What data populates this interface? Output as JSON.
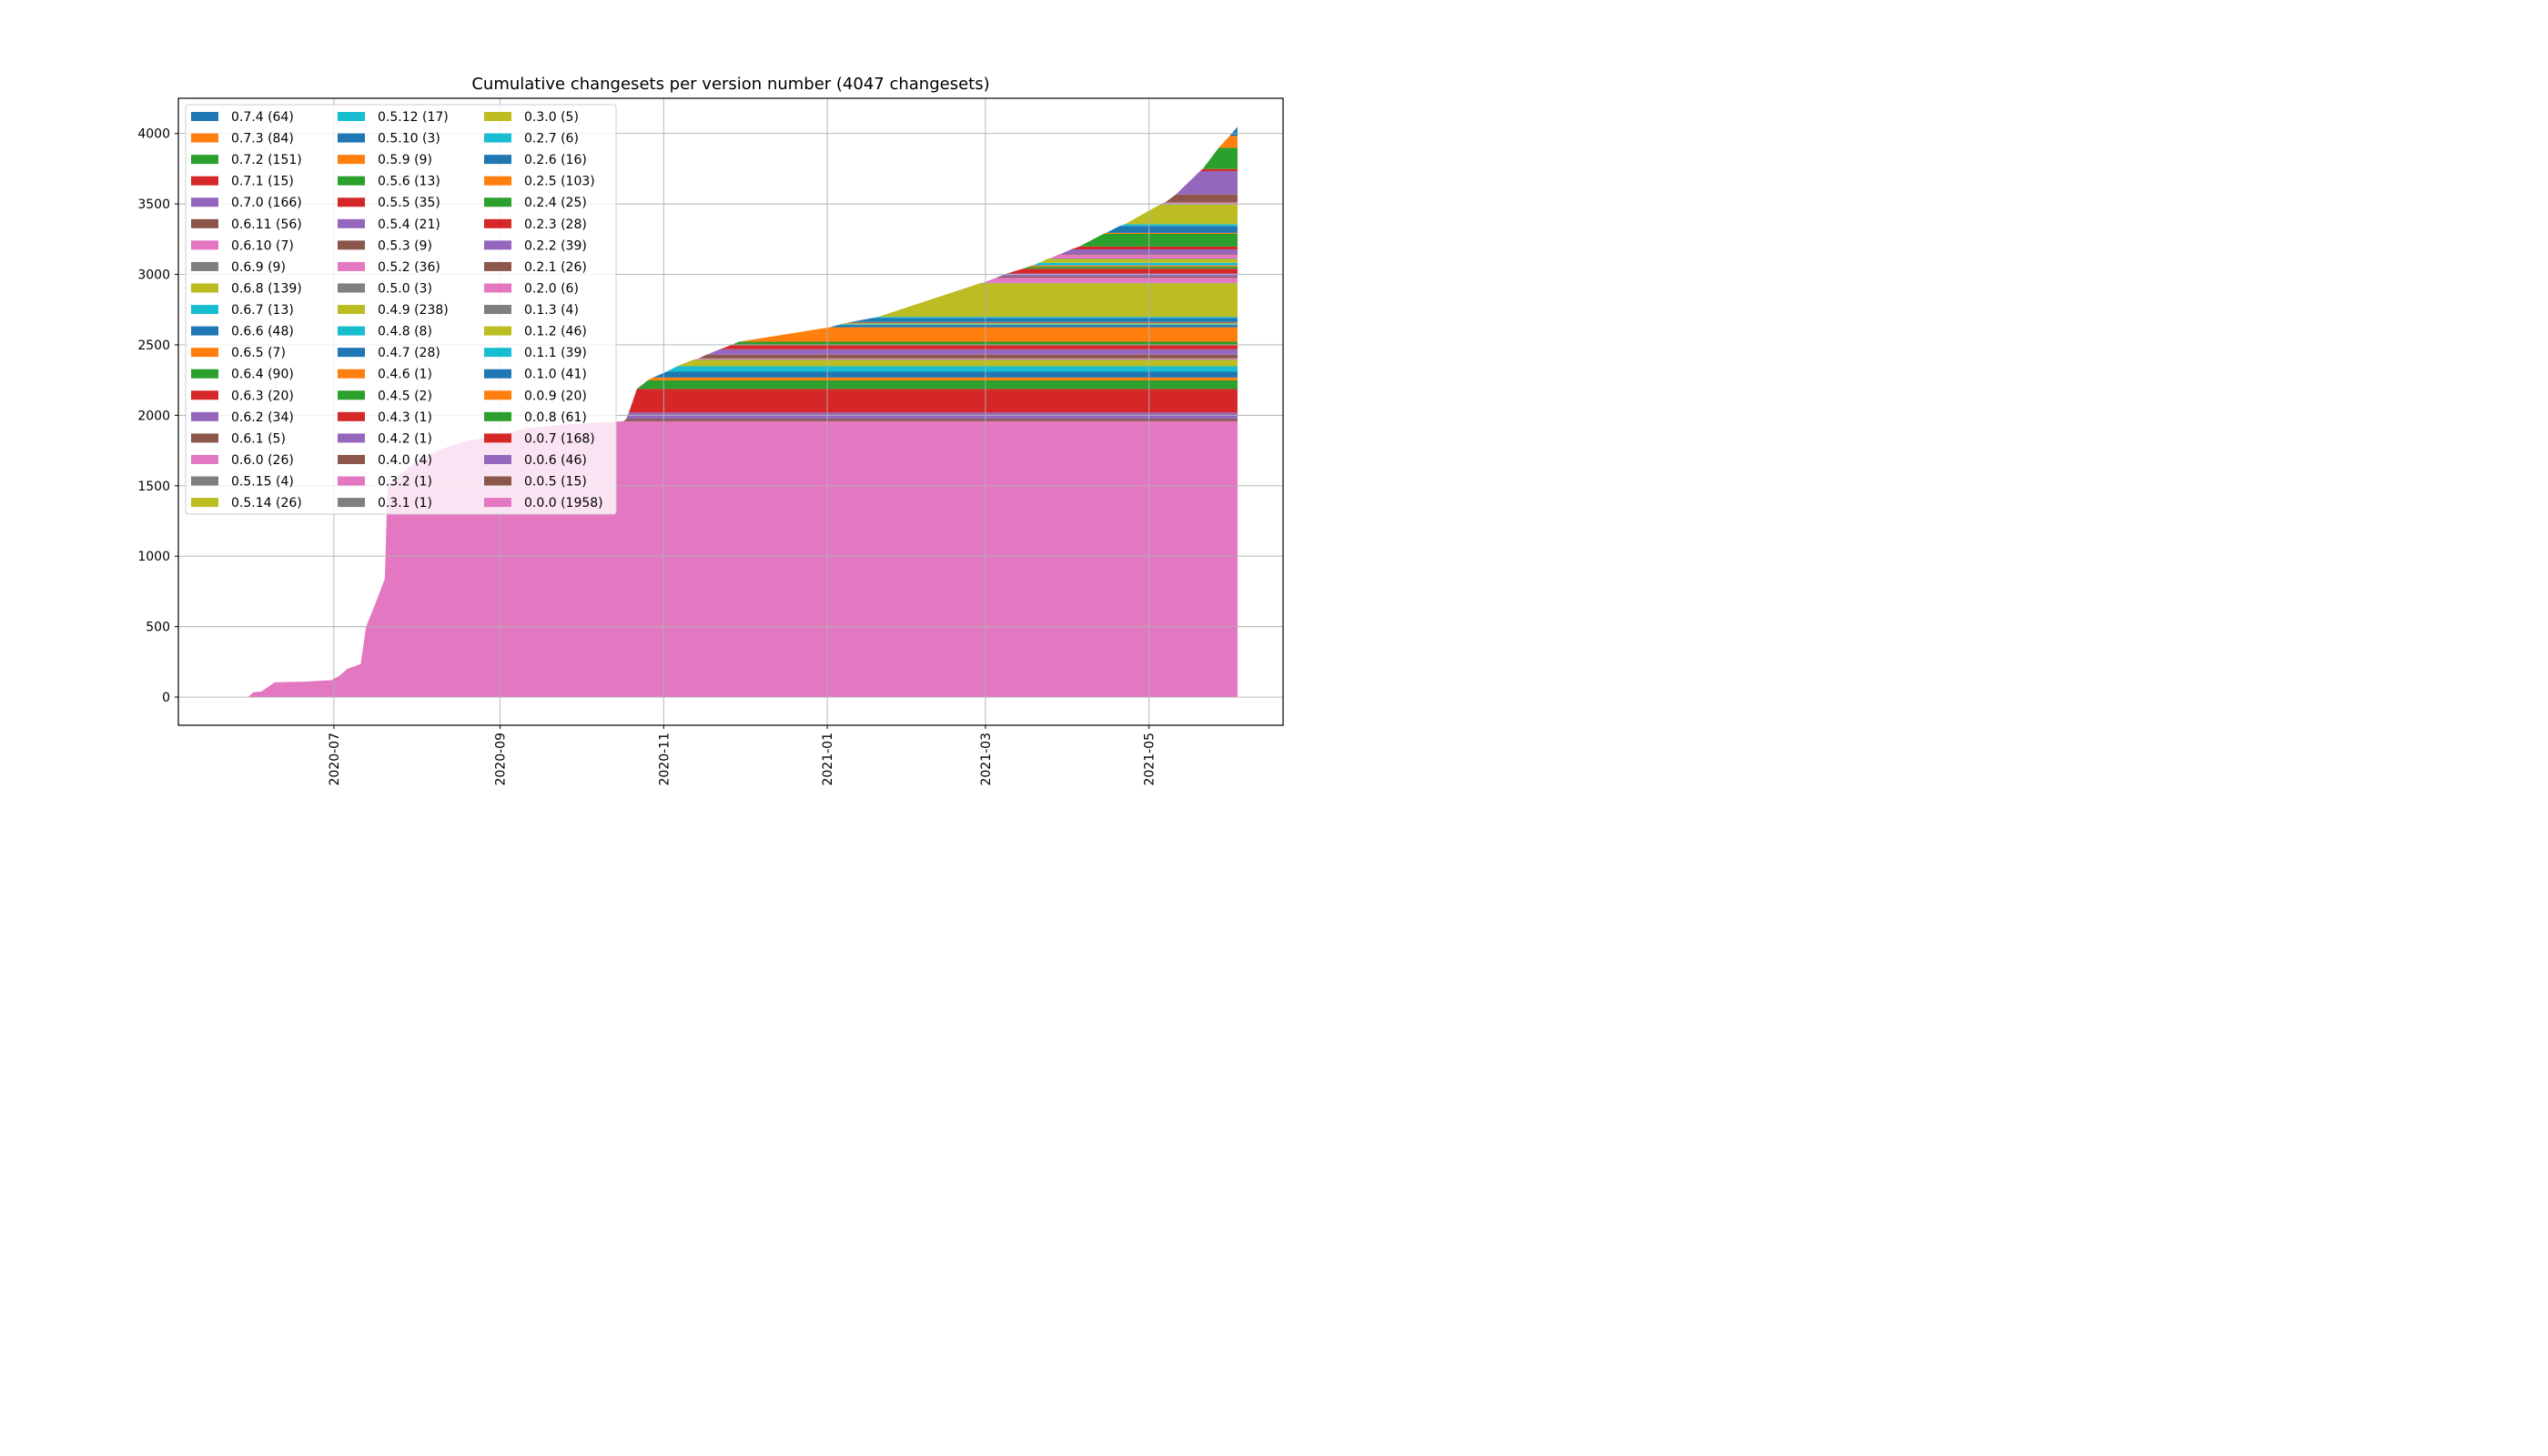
{
  "chart_data": {
    "type": "area",
    "stacked": true,
    "title": "Cumulative changesets per version number (4047 changesets)",
    "xlabel": "",
    "ylabel": "",
    "xlim": [
      "2020-05-04",
      "2021-06-20"
    ],
    "ylim": [
      -200,
      4250
    ],
    "grid": true,
    "legend_position": "top-left",
    "x_ticks": [
      "2020-07",
      "2020-09",
      "2020-11",
      "2021-01",
      "2021-03",
      "2021-05"
    ],
    "y_ticks": [
      0,
      500,
      1000,
      1500,
      2000,
      2500,
      3000,
      3500,
      4000
    ],
    "end_date": "2021-06-03",
    "series": [
      {
        "name": "0.0.0 (1958)",
        "color": "#e377c2",
        "start": "2020-05-30",
        "total": 1958
      },
      {
        "name": "0.0.5 (15)",
        "color": "#8c564b",
        "start": "2020-10-17",
        "total": 15
      },
      {
        "name": "0.0.6 (46)",
        "color": "#9467bd",
        "start": "2020-10-18",
        "total": 46
      },
      {
        "name": "0.0.7 (168)",
        "color": "#d62728",
        "start": "2020-10-19",
        "total": 168
      },
      {
        "name": "0.0.8 (61)",
        "color": "#2ca02c",
        "start": "2020-10-22",
        "total": 61
      },
      {
        "name": "0.0.9 (20)",
        "color": "#ff7f0e",
        "start": "2020-10-26",
        "total": 20
      },
      {
        "name": "0.1.0 (41)",
        "color": "#1f77b4",
        "start": "2020-10-28",
        "total": 41
      },
      {
        "name": "0.1.1 (39)",
        "color": "#17becf",
        "start": "2020-11-02",
        "total": 39
      },
      {
        "name": "0.1.2 (46)",
        "color": "#bcbd22",
        "start": "2020-11-06",
        "total": 46
      },
      {
        "name": "0.1.3 (4)",
        "color": "#7f7f7f",
        "start": "2020-11-12",
        "total": 4
      },
      {
        "name": "0.2.0 (6)",
        "color": "#e377c2",
        "start": "2020-11-13",
        "total": 6
      },
      {
        "name": "0.2.1 (26)",
        "color": "#8c564b",
        "start": "2020-11-14",
        "total": 26
      },
      {
        "name": "0.2.2 (39)",
        "color": "#9467bd",
        "start": "2020-11-17",
        "total": 39
      },
      {
        "name": "0.2.3 (28)",
        "color": "#d62728",
        "start": "2020-11-22",
        "total": 28
      },
      {
        "name": "0.2.4 (25)",
        "color": "#2ca02c",
        "start": "2020-11-26",
        "total": 25
      },
      {
        "name": "0.2.5 (103)",
        "color": "#ff7f0e",
        "start": "2020-11-29",
        "total": 103
      },
      {
        "name": "0.2.6 (16)",
        "color": "#1f77b4",
        "start": "2021-01-02",
        "total": 16
      },
      {
        "name": "0.2.7 (6)",
        "color": "#17becf",
        "start": "2021-01-05",
        "total": 6
      },
      {
        "name": "0.3.0 (5)",
        "color": "#bcbd22",
        "start": "2021-01-06",
        "total": 5
      },
      {
        "name": "0.3.1 (1)",
        "color": "#7f7f7f",
        "start": "2021-01-07",
        "total": 1
      },
      {
        "name": "0.3.2 (1)",
        "color": "#e377c2",
        "start": "2021-01-07",
        "total": 1
      },
      {
        "name": "0.4.0 (4)",
        "color": "#8c564b",
        "start": "2021-01-08",
        "total": 4
      },
      {
        "name": "0.4.2 (1)",
        "color": "#9467bd",
        "start": "2021-01-08",
        "total": 1
      },
      {
        "name": "0.4.3 (1)",
        "color": "#d62728",
        "start": "2021-01-09",
        "total": 1
      },
      {
        "name": "0.4.5 (2)",
        "color": "#2ca02c",
        "start": "2021-01-09",
        "total": 2
      },
      {
        "name": "0.4.6 (1)",
        "color": "#ff7f0e",
        "start": "2021-01-09",
        "total": 1
      },
      {
        "name": "0.4.7 (28)",
        "color": "#1f77b4",
        "start": "2021-01-10",
        "total": 28
      },
      {
        "name": "0.4.8 (8)",
        "color": "#17becf",
        "start": "2021-01-18",
        "total": 8
      },
      {
        "name": "0.4.9 (238)",
        "color": "#bcbd22",
        "start": "2021-01-20",
        "total": 238
      },
      {
        "name": "0.5.0 (3)",
        "color": "#7f7f7f",
        "start": "2021-02-27",
        "total": 3
      },
      {
        "name": "0.5.2 (36)",
        "color": "#e377c2",
        "start": "2021-02-28",
        "total": 36
      },
      {
        "name": "0.5.3 (9)",
        "color": "#8c564b",
        "start": "2021-03-05",
        "total": 9
      },
      {
        "name": "0.5.4 (21)",
        "color": "#9467bd",
        "start": "2021-03-06",
        "total": 21
      },
      {
        "name": "0.5.5 (35)",
        "color": "#d62728",
        "start": "2021-03-09",
        "total": 35
      },
      {
        "name": "0.5.6 (13)",
        "color": "#2ca02c",
        "start": "2021-03-15",
        "total": 13
      },
      {
        "name": "0.5.9 (9)",
        "color": "#ff7f0e",
        "start": "2021-03-17",
        "total": 9
      },
      {
        "name": "0.5.10 (3)",
        "color": "#1f77b4",
        "start": "2021-03-18",
        "total": 3
      },
      {
        "name": "0.5.12 (17)",
        "color": "#17becf",
        "start": "2021-03-19",
        "total": 17
      },
      {
        "name": "0.5.14 (26)",
        "color": "#bcbd22",
        "start": "2021-03-21",
        "total": 26
      },
      {
        "name": "0.5.15 (4)",
        "color": "#7f7f7f",
        "start": "2021-03-24",
        "total": 4
      },
      {
        "name": "0.6.0 (26)",
        "color": "#e377c2",
        "start": "2021-03-25",
        "total": 26
      },
      {
        "name": "0.6.1 (5)",
        "color": "#8c564b",
        "start": "2021-03-28",
        "total": 5
      },
      {
        "name": "0.6.2 (34)",
        "color": "#9467bd",
        "start": "2021-03-29",
        "total": 34
      },
      {
        "name": "0.6.3 (20)",
        "color": "#d62728",
        "start": "2021-04-02",
        "total": 20
      },
      {
        "name": "0.6.4 (90)",
        "color": "#2ca02c",
        "start": "2021-04-05",
        "total": 90
      },
      {
        "name": "0.6.5 (7)",
        "color": "#ff7f0e",
        "start": "2021-04-14",
        "total": 7
      },
      {
        "name": "0.6.6 (48)",
        "color": "#1f77b4",
        "start": "2021-04-15",
        "total": 48
      },
      {
        "name": "0.6.7 (13)",
        "color": "#17becf",
        "start": "2021-04-20",
        "total": 13
      },
      {
        "name": "0.6.8 (139)",
        "color": "#bcbd22",
        "start": "2021-04-22",
        "total": 139
      },
      {
        "name": "0.6.9 (9)",
        "color": "#7f7f7f",
        "start": "2021-05-05",
        "total": 9
      },
      {
        "name": "0.6.10 (7)",
        "color": "#e377c2",
        "start": "2021-05-06",
        "total": 7
      },
      {
        "name": "0.6.11 (56)",
        "color": "#8c564b",
        "start": "2021-05-07",
        "total": 56
      },
      {
        "name": "0.7.0 (166)",
        "color": "#9467bd",
        "start": "2021-05-11",
        "total": 166
      },
      {
        "name": "0.7.1 (15)",
        "color": "#d62728",
        "start": "2021-05-20",
        "total": 15
      },
      {
        "name": "0.7.2 (151)",
        "color": "#2ca02c",
        "start": "2021-05-21",
        "total": 151
      },
      {
        "name": "0.7.3 (84)",
        "color": "#ff7f0e",
        "start": "2021-05-27",
        "total": 84
      },
      {
        "name": "0.7.4 (64)",
        "color": "#1f77b4",
        "start": "2021-05-31",
        "total": 64
      }
    ],
    "base_series_curve": [
      [
        "2020-05-30",
        0
      ],
      [
        "2020-06-01",
        35
      ],
      [
        "2020-06-04",
        40
      ],
      [
        "2020-06-09",
        105
      ],
      [
        "2020-06-20",
        110
      ],
      [
        "2020-06-30",
        120
      ],
      [
        "2020-07-03",
        150
      ],
      [
        "2020-07-06",
        200
      ],
      [
        "2020-07-11",
        235
      ],
      [
        "2020-07-13",
        500
      ],
      [
        "2020-07-16",
        640
      ],
      [
        "2020-07-20",
        840
      ],
      [
        "2020-07-21",
        1500
      ],
      [
        "2020-08-01",
        1680
      ],
      [
        "2020-08-10",
        1760
      ],
      [
        "2020-08-20",
        1820
      ],
      [
        "2020-08-30",
        1850
      ],
      [
        "2020-09-10",
        1905
      ],
      [
        "2020-09-25",
        1935
      ],
      [
        "2020-10-10",
        1950
      ],
      [
        "2020-10-17",
        1958
      ],
      [
        "2021-06-03",
        1958
      ]
    ]
  }
}
